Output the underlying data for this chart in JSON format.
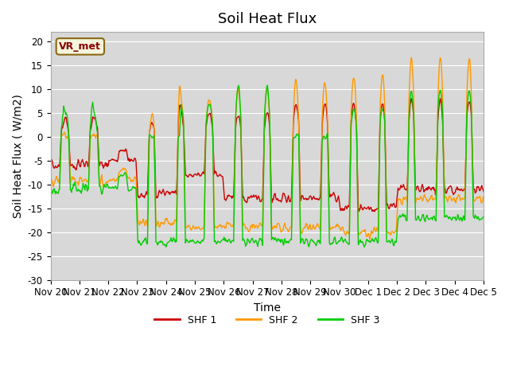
{
  "title": "Soil Heat Flux",
  "ylabel": "Soil Heat Flux ( W/m2)",
  "xlabel": "Time",
  "ylim": [
    -30,
    22
  ],
  "yticks": [
    -30,
    -25,
    -20,
    -15,
    -10,
    -5,
    0,
    5,
    10,
    15,
    20
  ],
  "legend_labels": [
    "SHF 1",
    "SHF 2",
    "SHF 3"
  ],
  "line_colors": [
    "#cc0000",
    "#ff9900",
    "#00cc00"
  ],
  "background_color": "#d8d8d8",
  "vr_met_label": "VR_met",
  "title_fontsize": 13,
  "label_fontsize": 10,
  "tick_fontsize": 8.5,
  "xtick_labels": [
    "Nov 20",
    "Nov 21",
    "Nov 22",
    "Nov 23",
    "Nov 24",
    "Nov 25",
    "Nov 26",
    "Nov 27",
    "Nov 28",
    "Nov 29",
    "Nov 30",
    "Dec 1",
    "Dec 2",
    "Dec 3",
    "Dec 4",
    "Dec 5"
  ],
  "n_days": 15,
  "n_points_per_day": 48
}
